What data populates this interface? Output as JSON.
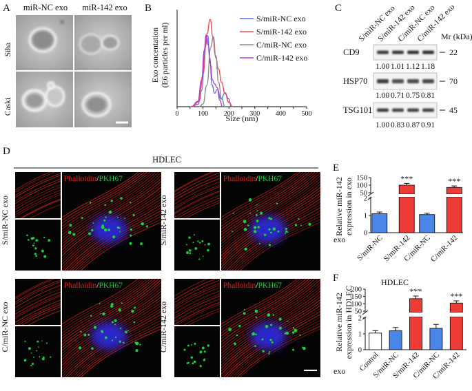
{
  "panel_letters": [
    "A",
    "B",
    "C",
    "D",
    "E",
    "F"
  ],
  "panelA": {
    "col_labels": [
      "miR-NC exo",
      "miR-142 exo"
    ],
    "row_labels": [
      "Siha",
      "Caski"
    ]
  },
  "panelC": {
    "lanes": [
      "S/miR-NC exo",
      "S/miR-142 exo",
      "C/miR-NC exo",
      "C/miR-142 exo"
    ],
    "mr_label": "Mr (kDa)",
    "proteins": [
      {
        "name": "CD9",
        "mr": "22",
        "values": [
          "1.00",
          "1.01",
          "1.12",
          "1.18"
        ]
      },
      {
        "name": "HSP70",
        "mr": "70",
        "values": [
          "1.00",
          "0.71",
          "0.75",
          "0.81"
        ]
      },
      {
        "name": "TSG101",
        "mr": "45",
        "values": [
          "1.00",
          "0.83",
          "0.87",
          "0.91"
        ]
      }
    ]
  },
  "panelD": {
    "title": "HDLEC",
    "stain_red": "Phalloidin",
    "stain_sep": "/",
    "stain_green": "PKH67",
    "groups": [
      "S/miR-NC exo",
      "S/miR-142 exo",
      "C/miR-NC exo",
      "C/miR-142 exo"
    ]
  },
  "colors": {
    "nc_bar": "#4a86e8",
    "mir142_bar": "#ef3b36",
    "s_nc_line": "#5b6fe8",
    "s_142_line": "#ee4a4a",
    "c_nc_line": "#8a8a8a",
    "c_142_line": "#b43ad6",
    "phalloidin": "#e8211b",
    "pkh67": "#19d13a"
  },
  "chart_data": [
    {
      "type": "line",
      "panel": "B",
      "xlabel": "Size (nm)",
      "ylabel_lines": [
        "Exo concentation",
        "(E6 particles per ml)"
      ],
      "xticks": [
        0,
        50,
        100,
        150,
        200,
        250,
        300,
        350,
        400,
        450,
        500
      ],
      "xlim": [
        0,
        500
      ],
      "ylim": [
        0,
        18
      ],
      "legend_position": "top-right",
      "series": [
        {
          "name": "S/miR-NC exo",
          "color": "#5b6fe8",
          "points": [
            [
              50,
              0
            ],
            [
              80,
              0.4
            ],
            [
              95,
              3
            ],
            [
              108,
              11
            ],
            [
              118,
              13.2
            ],
            [
              126,
              9
            ],
            [
              135,
              4
            ],
            [
              145,
              2.5
            ],
            [
              155,
              3.2
            ],
            [
              170,
              1.4
            ],
            [
              185,
              2.6
            ],
            [
              198,
              1.5
            ],
            [
              210,
              0
            ]
          ]
        },
        {
          "name": "S/miR-142 exo",
          "color": "#ee4a4a",
          "points": [
            [
              60,
              0
            ],
            [
              85,
              1
            ],
            [
              100,
              6
            ],
            [
              115,
              13.5
            ],
            [
              128,
              16.2
            ],
            [
              138,
              13
            ],
            [
              148,
              9.5
            ],
            [
              160,
              7
            ],
            [
              172,
              4.5
            ],
            [
              185,
              2.5
            ],
            [
              200,
              0.8
            ],
            [
              215,
              0
            ]
          ]
        },
        {
          "name": "C/miR-NC exo",
          "color": "#8a8a8a",
          "points": [
            [
              85,
              0
            ],
            [
              100,
              0.5
            ],
            [
              115,
              4
            ],
            [
              130,
              11
            ],
            [
              140,
              13
            ],
            [
              150,
              9
            ],
            [
              160,
              4.5
            ],
            [
              172,
              1.5
            ],
            [
              185,
              0
            ]
          ]
        },
        {
          "name": "C/miR-142 exo",
          "color": "#b43ad6",
          "points": [
            [
              55,
              0
            ],
            [
              80,
              1
            ],
            [
              95,
              5
            ],
            [
              105,
              10.5
            ],
            [
              112,
              13.3
            ],
            [
              120,
              11.5
            ],
            [
              128,
              8
            ],
            [
              136,
              5
            ],
            [
              145,
              4.2
            ],
            [
              155,
              3.5
            ],
            [
              165,
              1.2
            ],
            [
              175,
              0
            ]
          ]
        }
      ]
    },
    {
      "type": "bar",
      "panel": "E",
      "ylabel_lines": [
        "Relative miR-142",
        "expression in exo"
      ],
      "row_label": "exo",
      "categories": [
        "S/miR-NC",
        "S/miR-142",
        "C/miR-NC",
        "C/miR-142"
      ],
      "values": [
        1.1,
        100,
        1.05,
        85
      ],
      "errors": [
        0.1,
        12,
        0.08,
        10
      ],
      "lower_ylim": [
        0,
        2
      ],
      "lower_yticks": [
        0,
        1,
        2
      ],
      "upper_ylim": [
        50,
        150
      ],
      "upper_yticks": [
        50,
        100,
        150
      ],
      "significance": [
        "",
        "***",
        "",
        "***"
      ]
    },
    {
      "type": "bar",
      "panel": "F",
      "title": "HDLEC",
      "ylabel_lines": [
        "Relative miR-142",
        "expression in HDLEC"
      ],
      "row_label": "exo",
      "categories": [
        "Control",
        "S/miR-NC",
        "S/miR-142",
        "C/miR-NC",
        "C/miR-142"
      ],
      "values": [
        1.05,
        1.2,
        135,
        1.35,
        105
      ],
      "errors": [
        0.15,
        0.2,
        18,
        0.25,
        15
      ],
      "lower_ylim": [
        0,
        2
      ],
      "lower_yticks": [
        0,
        1,
        2
      ],
      "upper_ylim": [
        50,
        200
      ],
      "upper_yticks": [
        50,
        100,
        150,
        200
      ],
      "significance": [
        "",
        "",
        "***",
        "",
        "***"
      ]
    }
  ]
}
